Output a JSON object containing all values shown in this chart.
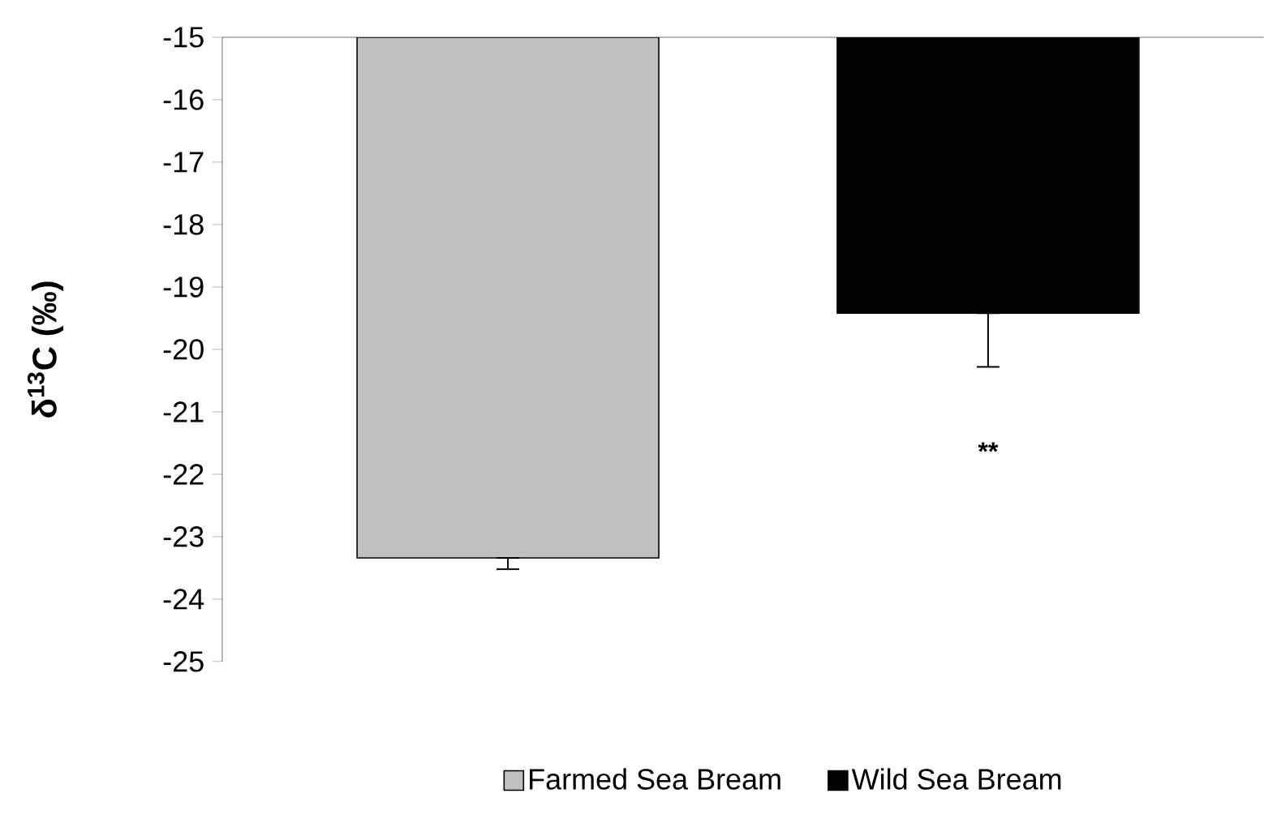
{
  "chart_data": {
    "type": "bar",
    "ylabel": "δ$^{13}$C (‰)",
    "categories": [
      null,
      null
    ],
    "series": [
      {
        "name": "Farmed Sea Bream",
        "color": "#c0c0c0",
        "values": [
          -23.34,
          null
        ],
        "errors": [
          [
            -23.52,
            -23.34
          ],
          null
        ]
      },
      {
        "name": "Wild Sea Bream",
        "color": "#000000",
        "values": [
          null,
          -19.42
        ],
        "errors": [
          null,
          [
            -20.28,
            -19.42
          ]
        ]
      }
    ],
    "ylim": [
      -25,
      -15
    ],
    "yticks": [
      -25,
      -24,
      -23,
      -22,
      -21,
      -20,
      -19,
      -18,
      -17,
      -16,
      -15
    ],
    "annotations": [
      "**"
    ],
    "grid": false,
    "legend": "bottom"
  }
}
